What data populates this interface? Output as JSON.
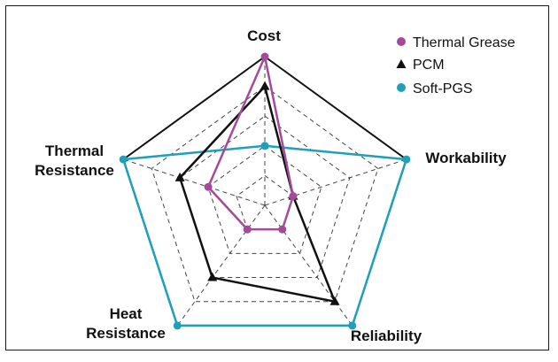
{
  "chart_data": {
    "type": "radar",
    "title": "",
    "axes": [
      "Cost",
      "Workability",
      "Reliability",
      "Heat Resistance",
      "Thermal Resistance"
    ],
    "range": [
      0,
      5
    ],
    "grid_levels": 5,
    "series": [
      {
        "name": "Thermal Grease",
        "color": "#a44a9b",
        "marker": "circle",
        "values": [
          5,
          1,
          1,
          1,
          2
        ]
      },
      {
        "name": "PCM",
        "color": "#111111",
        "marker": "triangle",
        "values": [
          4,
          1,
          4,
          3,
          3
        ]
      },
      {
        "name": "Soft-PGS",
        "color": "#1fa0b8",
        "marker": "circle",
        "values": [
          2,
          5,
          5,
          5,
          5
        ]
      }
    ],
    "legend_position": "top-right"
  }
}
